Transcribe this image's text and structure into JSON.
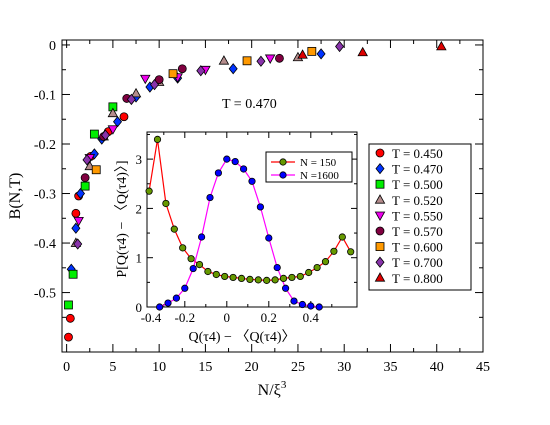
{
  "chart_data": [
    {
      "type": "scatter",
      "xlabel_main": "N/ξ",
      "xlabel_sup": "3",
      "ylabel": "B(N,T)",
      "xlim": [
        -0.5,
        45
      ],
      "ylim": [
        -0.62,
        0.01
      ],
      "xticks": [
        0,
        5,
        10,
        15,
        20,
        25,
        30,
        35,
        40,
        45
      ],
      "xtick_labels": [
        "0",
        "5",
        "10",
        "15",
        "20",
        "25",
        "30",
        "35",
        "40",
        "45"
      ],
      "yticks": [
        0,
        -0.1,
        -0.2,
        -0.3,
        -0.4,
        -0.5
      ],
      "ytick_labels": [
        "0",
        "-0.1",
        "-0.2",
        "-0.3",
        "-0.4",
        "-0.5"
      ],
      "annotation": "T = 0.470",
      "legend_position": "right",
      "series": [
        {
          "name": "T = 0.450",
          "marker": "circle",
          "color": "#ff0000",
          "points": [
            [
              0.2,
              -0.59
            ],
            [
              0.4,
              -0.552
            ],
            [
              1.0,
              -0.34
            ],
            [
              1.3,
              -0.305
            ],
            [
              2.6,
              -0.225
            ],
            [
              4.5,
              -0.175
            ],
            [
              6.2,
              -0.145
            ]
          ]
        },
        {
          "name": "T = 0.470",
          "marker": "diamond",
          "color": "#0033ff",
          "points": [
            [
              0.5,
              -0.453
            ],
            [
              1.0,
              -0.37
            ],
            [
              1.5,
              -0.3
            ],
            [
              3.0,
              -0.22
            ],
            [
              3.8,
              -0.19
            ],
            [
              5.5,
              -0.155
            ],
            [
              7.5,
              -0.105
            ],
            [
              9.0,
              -0.085
            ],
            [
              12.0,
              -0.067
            ],
            [
              18.0,
              -0.048
            ],
            [
              27.5,
              -0.018
            ]
          ]
        },
        {
          "name": "T = 0.500",
          "marker": "square",
          "color": "#00ee00",
          "points": [
            [
              0.2,
              -0.525
            ],
            [
              0.7,
              -0.463
            ],
            [
              2.0,
              -0.285
            ],
            [
              3.0,
              -0.18
            ],
            [
              5.0,
              -0.125
            ]
          ]
        },
        {
          "name": "T = 0.520",
          "marker": "triangle-up",
          "color": "#b48c8c",
          "points": [
            [
              1.0,
              -0.4
            ],
            [
              2.5,
              -0.245
            ],
            [
              4.0,
              -0.185
            ],
            [
              5.0,
              -0.138
            ],
            [
              7.5,
              -0.098
            ],
            [
              10.0,
              -0.075
            ],
            [
              17.0,
              -0.032
            ],
            [
              25.0,
              -0.025
            ]
          ]
        },
        {
          "name": "T = 0.550",
          "marker": "triangle-down",
          "color": "#ee00ee",
          "points": [
            [
              1.3,
              -0.355
            ],
            [
              2.5,
              -0.228
            ],
            [
              5.0,
              -0.17
            ],
            [
              8.5,
              -0.068
            ],
            [
              12.0,
              -0.065
            ],
            [
              15.0,
              -0.05
            ],
            [
              22.0,
              -0.027
            ]
          ]
        },
        {
          "name": "T = 0.570",
          "marker": "circle",
          "color": "#800040",
          "points": [
            [
              2.0,
              -0.268
            ],
            [
              4.0,
              -0.185
            ],
            [
              6.5,
              -0.108
            ],
            [
              10.0,
              -0.07
            ],
            [
              12.5,
              -0.048
            ],
            [
              23.0,
              -0.027
            ]
          ]
        },
        {
          "name": "T = 0.600",
          "marker": "square",
          "color": "#ff9900",
          "points": [
            [
              3.2,
              -0.252
            ],
            [
              11.5,
              -0.058
            ],
            [
              19.5,
              -0.032
            ],
            [
              26.5,
              -0.013
            ]
          ]
        },
        {
          "name": "T = 0.700",
          "marker": "diamond",
          "color": "#8833aa",
          "points": [
            [
              1.2,
              -0.402
            ],
            [
              2.2,
              -0.232
            ],
            [
              4.2,
              -0.182
            ],
            [
              7.0,
              -0.11
            ],
            [
              9.5,
              -0.08
            ],
            [
              14.5,
              -0.052
            ],
            [
              21.0,
              -0.033
            ],
            [
              29.5,
              -0.003
            ]
          ]
        },
        {
          "name": "T = 0.800",
          "marker": "triangle-up",
          "color": "#dd0000",
          "points": [
            [
              25.5,
              -0.02
            ],
            [
              32.0,
              -0.015
            ],
            [
              40.5,
              -0.003
            ]
          ]
        }
      ]
    },
    {
      "type": "line",
      "xlabel": "Q(τ4) − 〈Q(τ4)〉",
      "ylabel": "P[Q(τ4) − 〈Q(τ4)〉]",
      "xlim": [
        -0.38,
        0.62
      ],
      "ylim": [
        0,
        3.55
      ],
      "xticks": [
        -0.4,
        -0.2,
        0,
        0.2,
        0.4
      ],
      "xtick_labels": [
        "-0.4",
        "-0.2",
        "0",
        "0.2",
        "0.4"
      ],
      "yticks": [
        0,
        1,
        2,
        3
      ],
      "ytick_labels": [
        "0",
        "1",
        "2",
        "3"
      ],
      "legend_position": "top-right",
      "series": [
        {
          "name": "N = 150",
          "marker": "circle",
          "color": "#669900",
          "line_color": "#ff0000",
          "x": [
            -0.37,
            -0.33,
            -0.29,
            -0.25,
            -0.21,
            -0.17,
            -0.13,
            -0.09,
            -0.05,
            -0.01,
            0.03,
            0.07,
            0.11,
            0.15,
            0.19,
            0.23,
            0.27,
            0.31,
            0.35,
            0.39,
            0.43,
            0.47,
            0.51,
            0.55,
            0.59
          ],
          "y": [
            2.35,
            3.4,
            2.1,
            1.58,
            1.2,
            0.98,
            0.86,
            0.72,
            0.66,
            0.62,
            0.6,
            0.58,
            0.56,
            0.55,
            0.54,
            0.55,
            0.58,
            0.6,
            0.62,
            0.7,
            0.8,
            0.92,
            1.13,
            1.42,
            1.12
          ]
        },
        {
          "name": "N =1600",
          "marker": "circle",
          "color": "#0000ff",
          "line_color": "#ff00ff",
          "x": [
            -0.32,
            -0.28,
            -0.24,
            -0.2,
            -0.16,
            -0.12,
            -0.08,
            -0.04,
            0.0,
            0.04,
            0.08,
            0.12,
            0.16,
            0.2,
            0.24,
            0.28,
            0.32,
            0.36,
            0.4,
            0.44
          ],
          "y": [
            0.0,
            0.08,
            0.18,
            0.38,
            0.78,
            1.42,
            2.22,
            2.72,
            3.0,
            2.95,
            2.8,
            2.55,
            2.03,
            1.4,
            0.8,
            0.38,
            0.12,
            0.05,
            0.02,
            0.0
          ]
        }
      ]
    }
  ]
}
